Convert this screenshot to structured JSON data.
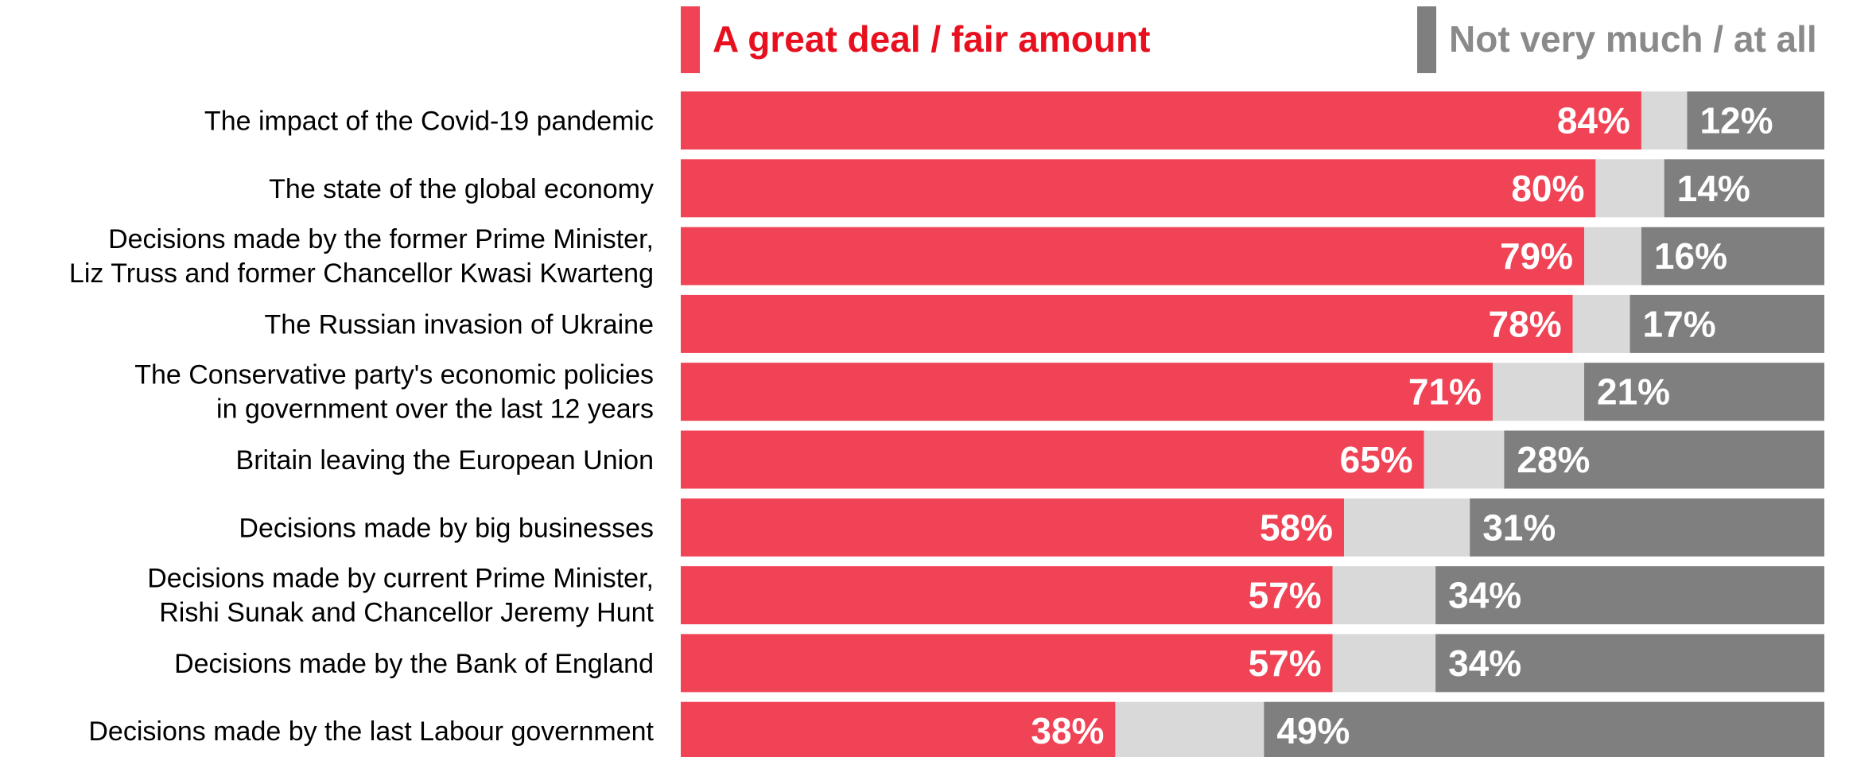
{
  "chart_data": {
    "type": "bar",
    "orientation": "horizontal",
    "stacked": true,
    "percent_scale": [
      0,
      100
    ],
    "legend": [
      {
        "name": "A great deal / fair amount",
        "color": "#f04355"
      },
      {
        "name": "Not very much / at all",
        "color": "#7f7f7f"
      }
    ],
    "remainder_color": "#d9d9d9",
    "categories": [
      [
        "The impact of the Covid-19 pandemic"
      ],
      [
        "The state of the global economy"
      ],
      [
        "Decisions made by the former Prime Minister,",
        "Liz Truss and former Chancellor Kwasi Kwarteng"
      ],
      [
        "The Russian invasion of Ukraine"
      ],
      [
        "The Conservative party's economic policies",
        "in government over the last 12 years"
      ],
      [
        "Britain leaving the European Union"
      ],
      [
        "Decisions made by big businesses"
      ],
      [
        "Decisions made by current Prime Minister,",
        "Rishi Sunak and Chancellor Jeremy Hunt"
      ],
      [
        "Decisions made by the Bank of England"
      ],
      [
        "Decisions made by the last Labour government"
      ]
    ],
    "series": [
      {
        "name": "A great deal / fair amount",
        "values": [
          84,
          80,
          79,
          78,
          71,
          65,
          58,
          57,
          57,
          38
        ],
        "labels": [
          "84%",
          "80%",
          "79%",
          "78%",
          "71%",
          "65%",
          "58%",
          "57%",
          "57%",
          "38%"
        ]
      },
      {
        "name": "Not very much / at all",
        "values": [
          12,
          14,
          16,
          17,
          21,
          28,
          31,
          34,
          34,
          49
        ],
        "labels": [
          "12%",
          "14%",
          "16%",
          "17%",
          "21%",
          "28%",
          "31%",
          "34%",
          "34%",
          "49%"
        ]
      }
    ]
  }
}
